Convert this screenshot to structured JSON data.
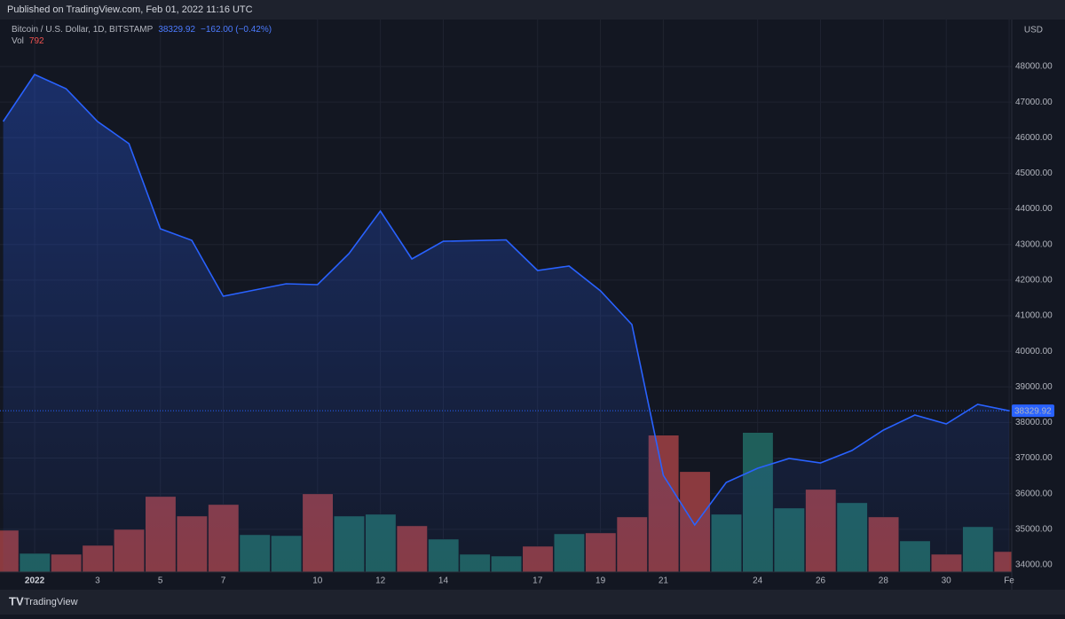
{
  "header": "Published on TradingView.com, Feb 01, 2022 11:16 UTC",
  "footer": "TradingView",
  "chart_data": {
    "type": "area",
    "title": "Bitcoin / U.S. Dollar, 1D, BITSTAMP",
    "change": "−162.00 (−0.42%)",
    "currency": "USD",
    "volume_label": "Vol",
    "categories": [
      null,
      "2022",
      null,
      "3",
      null,
      "5",
      null,
      "7",
      null,
      null,
      "10",
      null,
      "12",
      null,
      "14",
      null,
      null,
      "17",
      null,
      "19",
      null,
      "21",
      null,
      null,
      "24",
      null,
      "26",
      null,
      "28",
      null,
      "30",
      null,
      "Fe"
    ],
    "series": [
      {
        "name": "Bitcoin / U.S. Dollar",
        "color": "#2962ff",
        "values": [
          46455,
          47776,
          47377,
          46455,
          45833,
          43441,
          43117,
          41548,
          41722,
          41896,
          41871,
          42744,
          43939,
          42594,
          43090,
          43110,
          43130,
          42270,
          42395,
          41697,
          40750,
          36515,
          35120,
          36316,
          36714,
          36989,
          36864,
          37213,
          37786,
          38209,
          37960,
          38508,
          38329.92
        ]
      },
      {
        "name": "Vol",
        "axis": "volume",
        "values": [
          1617,
          722,
          688,
          1032,
          1651,
          2924,
          2167,
          2614,
          1445,
          1410,
          3027,
          2167,
          2236,
          1789,
          1273,
          688,
          619,
          998,
          1479,
          1514,
          2133,
          5298,
          3887,
          2236,
          5401,
          2477,
          3199,
          2683,
          2133,
          1204,
          688,
          1754,
          792
        ],
        "colors": [
          "#8b3a3f",
          "#1f5f5b",
          "#8b3a3f",
          "#8b3a3f",
          "#8b3a3f",
          "#8b3a3f",
          "#8b3a3f",
          "#8b3a3f",
          "#1f5f5b",
          "#1f5f5b",
          "#8b3a3f",
          "#1f5f5b",
          "#1f5f5b",
          "#8b3a3f",
          "#1f5f5b",
          "#1f5f5b",
          "#1f5f5b",
          "#8b3a3f",
          "#1f5f5b",
          "#8b3a3f",
          "#8b3a3f",
          "#8b3a3f",
          "#8b3a3f",
          "#1f5f5b",
          "#1f5f5b",
          "#1f5f5b",
          "#8b3a3f",
          "#1f5f5b",
          "#8b3a3f",
          "#1f5f5b",
          "#8b3a3f",
          "#1f5f5b",
          "#8b3a3f"
        ]
      }
    ],
    "ylim": [
      33800,
      49320
    ],
    "vol_ylim": [
      0,
      8000
    ],
    "yticks": [
      {
        "value": 34000,
        "label": "34000.00"
      },
      {
        "value": 35000,
        "label": "35000.00"
      },
      {
        "value": 36000,
        "label": "36000.00"
      },
      {
        "value": 37000,
        "label": "37000.00"
      },
      {
        "value": 38000,
        "label": "38000.00"
      },
      {
        "value": 39000,
        "label": "39000.00"
      },
      {
        "value": 40000,
        "label": "40000.00"
      },
      {
        "value": 41000,
        "label": "41000.00"
      },
      {
        "value": 42000,
        "label": "42000.00"
      },
      {
        "value": 43000,
        "label": "43000.00"
      },
      {
        "value": 44000,
        "label": "44000.00"
      },
      {
        "value": 45000,
        "label": "45000.00"
      },
      {
        "value": 46000,
        "label": "46000.00"
      },
      {
        "value": 47000,
        "label": "47000.00"
      },
      {
        "value": 48000,
        "label": "48000.00"
      }
    ],
    "grid": true
  }
}
